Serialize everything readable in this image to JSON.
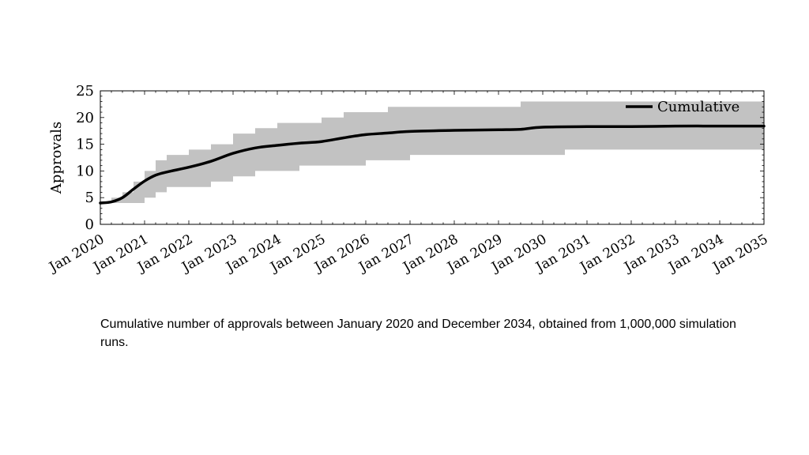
{
  "chart_data": {
    "type": "area",
    "ylabel": "Approvals",
    "xlabel": "",
    "title": "",
    "ylim": [
      0,
      25
    ],
    "xlim": [
      "2020-01",
      "2035-01"
    ],
    "yticks": [
      0,
      5,
      10,
      15,
      20,
      25
    ],
    "xticks": [
      "Jan 2020",
      "Jan 2021",
      "Jan 2022",
      "Jan 2023",
      "Jan 2024",
      "Jan 2025",
      "Jan 2026",
      "Jan 2027",
      "Jan 2028",
      "Jan 2029",
      "Jan 2030",
      "Jan 2031",
      "Jan 2032",
      "Jan 2033",
      "Jan 2034",
      "Jan 2035"
    ],
    "legend": {
      "position": "top-right",
      "entries": [
        "Cumulative"
      ]
    },
    "grid": false,
    "series": [
      {
        "name": "Cumulative",
        "x": [
          "2020-01",
          "2020-04",
          "2020-07",
          "2020-10",
          "2021-01",
          "2021-04",
          "2021-07",
          "2022-01",
          "2022-07",
          "2023-01",
          "2023-07",
          "2024-01",
          "2024-07",
          "2025-01",
          "2025-07",
          "2026-01",
          "2026-07",
          "2027-01",
          "2028-01",
          "2029-01",
          "2029-07",
          "2030-01",
          "2031-01",
          "2032-01",
          "2033-01",
          "2034-01",
          "2035-01"
        ],
        "values": [
          4.0,
          4.2,
          5.0,
          6.6,
          8.1,
          9.2,
          9.8,
          10.7,
          11.8,
          13.3,
          14.3,
          14.8,
          15.2,
          15.5,
          16.2,
          16.8,
          17.1,
          17.4,
          17.6,
          17.7,
          17.8,
          18.2,
          18.3,
          18.3,
          18.4,
          18.4,
          18.4
        ]
      }
    ],
    "band": {
      "x": [
        "2020-01",
        "2020-04",
        "2020-07",
        "2020-10",
        "2021-01",
        "2021-04",
        "2021-07",
        "2022-01",
        "2022-07",
        "2023-01",
        "2023-07",
        "2024-01",
        "2024-07",
        "2025-01",
        "2025-07",
        "2026-01",
        "2026-07",
        "2027-01",
        "2028-01",
        "2029-01",
        "2029-07",
        "2030-01",
        "2030-07",
        "2031-01",
        "2032-01",
        "2033-01",
        "2034-01",
        "2035-01"
      ],
      "lower": [
        4,
        4,
        4,
        4,
        5,
        6,
        7,
        7,
        8,
        9,
        10,
        10,
        11,
        11,
        11,
        12,
        12,
        13,
        13,
        13,
        13,
        13,
        14,
        14,
        14,
        14,
        14,
        14
      ],
      "upper": [
        4,
        5,
        6,
        8,
        10,
        12,
        13,
        14,
        15,
        17,
        18,
        19,
        19,
        20,
        21,
        21,
        22,
        22,
        22,
        22,
        23,
        23,
        23,
        23,
        23,
        23,
        23,
        23
      ]
    },
    "colors": {
      "line": "#000000",
      "band": "#c2c2c2",
      "axis": "#000000"
    }
  },
  "caption": "Cumulative number of approvals between January 2020 and December 2034, obtained from 1,000,000 simulation runs."
}
